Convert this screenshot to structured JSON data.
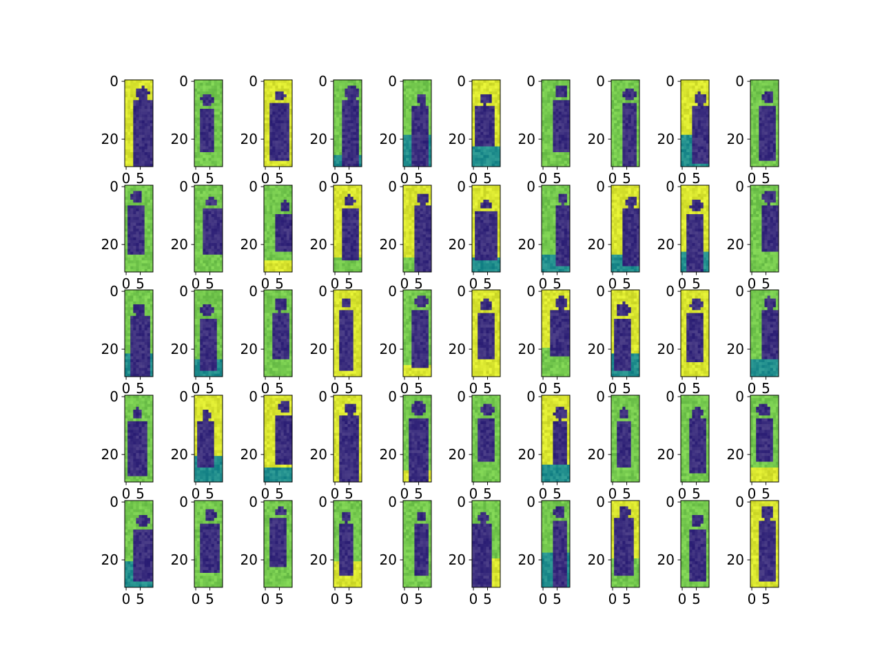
{
  "figure": {
    "rows": 5,
    "cols": 10,
    "colormap": "viridis",
    "image_size": [
      30,
      10
    ],
    "axis_frame_color": "#000000",
    "panel_colors": {
      "dark": "#3b2e7e",
      "teal": "#218e8d",
      "green": "#75c94e",
      "yellow": "#d9e52f"
    }
  },
  "chart_data": {
    "type": "heatmap",
    "title": "",
    "xlabel": "",
    "ylabel": "",
    "panel_count": 50,
    "x_range": [
      -0.5,
      9.5
    ],
    "y_range": [
      29.5,
      -0.5
    ],
    "x_ticks": [
      0,
      5
    ],
    "x_tick_labels": [
      "0",
      "5"
    ],
    "y_ticks": [
      0,
      20
    ],
    "y_tick_labels": [
      "0",
      "20"
    ],
    "x_ticklabels_visible_row": "bottom",
    "y_ticklabels_visible": "all",
    "grid": false
  }
}
